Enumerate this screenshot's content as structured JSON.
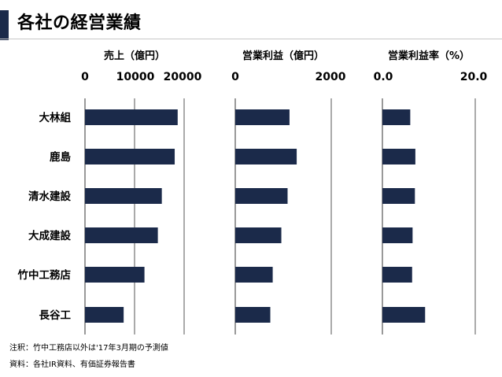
{
  "page": {
    "title": "各社の経営業績",
    "note": "注釈：竹中工務店以外は'17年3月期の予測値",
    "source": "資料：各社IR資料、有価証券報告書"
  },
  "colors": {
    "bar": "#1b2a4a",
    "axis": "#333333",
    "accent": "#1b2a4a"
  },
  "chart_data": [
    {
      "type": "bar",
      "orientation": "horizontal",
      "title": "売上（億円）",
      "categories": [
        "大林組",
        "鹿島",
        "清水建設",
        "大成建設",
        "竹中工務店",
        "長谷工"
      ],
      "values": [
        18700,
        18100,
        15500,
        14700,
        12000,
        7800
      ],
      "tick_labels": [
        "0",
        "10000",
        "20000"
      ],
      "xlim": [
        0,
        20000
      ],
      "grid": true
    },
    {
      "type": "bar",
      "orientation": "horizontal",
      "title": "営業利益（億円）",
      "categories": [
        "大林組",
        "鹿島",
        "清水建設",
        "大成建設",
        "竹中工務店",
        "長谷工"
      ],
      "values": [
        1130,
        1280,
        1090,
        960,
        780,
        730
      ],
      "tick_labels": [
        "0",
        "2000"
      ],
      "xlim": [
        0,
        2000
      ],
      "grid": true
    },
    {
      "type": "bar",
      "orientation": "horizontal",
      "title": "営業利益率（%）",
      "categories": [
        "大林組",
        "鹿島",
        "清水建設",
        "大成建設",
        "竹中工務店",
        "長谷工"
      ],
      "values": [
        6.0,
        7.1,
        7.0,
        6.5,
        6.4,
        9.2
      ],
      "tick_labels": [
        "0.0",
        "20.0"
      ],
      "xlim": [
        0,
        20
      ],
      "grid": true
    }
  ]
}
